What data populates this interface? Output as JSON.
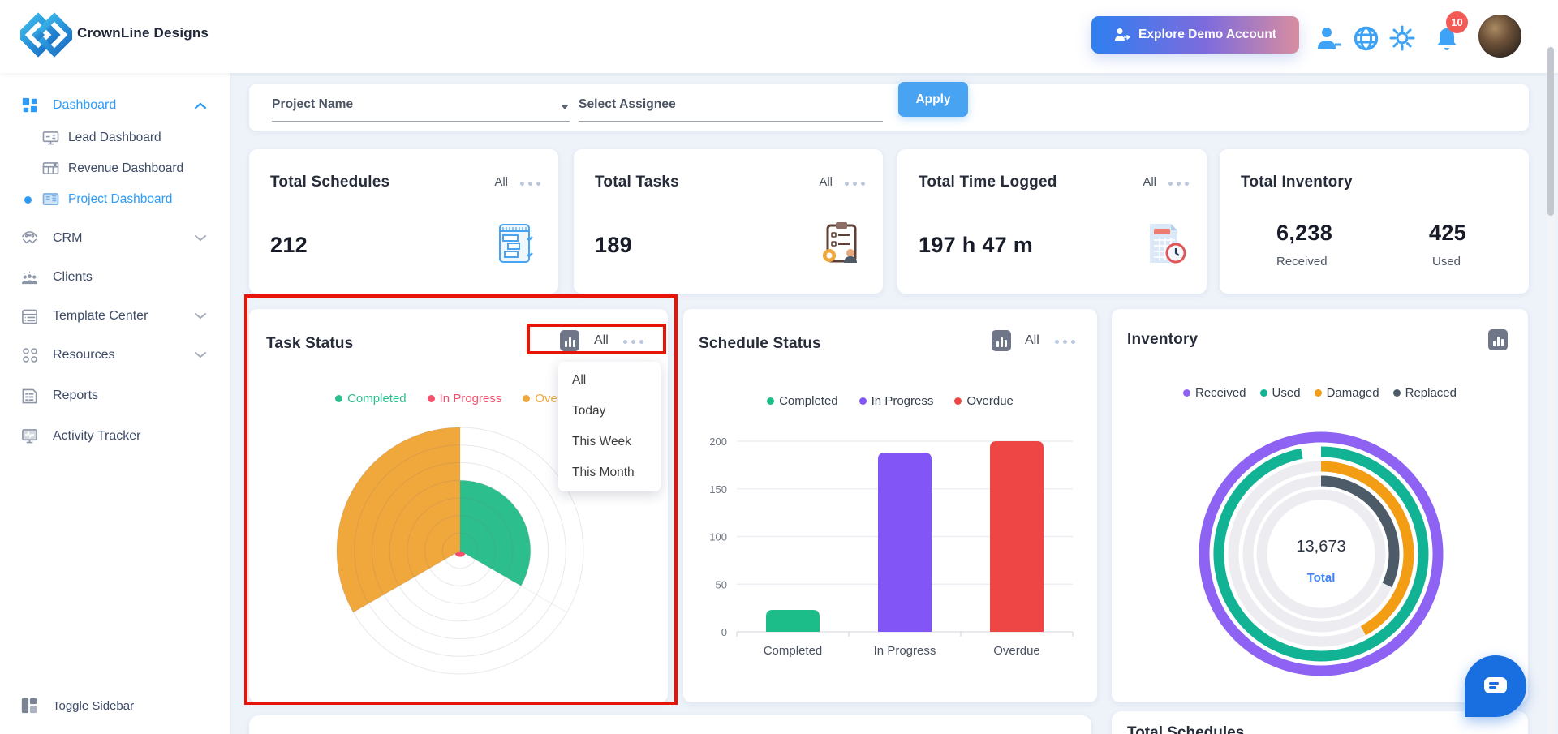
{
  "header": {
    "brand": "CrownLine Designs",
    "explore_button_label": "Explore Demo Account",
    "notification_badge": "10",
    "icons": [
      "brand-logo",
      "person-add-icon",
      "globe-icon",
      "settings-gear-icon",
      "notifications-bell-icon",
      "user-avatar"
    ]
  },
  "sidebar": {
    "items": [
      {
        "label": "Dashboard",
        "state": "active-expanded"
      },
      {
        "label": "Lead Dashboard",
        "state": "normal"
      },
      {
        "label": "Revenue Dashboard",
        "state": "normal"
      },
      {
        "label": "Project Dashboard",
        "state": "active"
      },
      {
        "label": "CRM",
        "state": "collapsed"
      },
      {
        "label": "Clients",
        "state": "normal"
      },
      {
        "label": "Template Center",
        "state": "collapsed"
      },
      {
        "label": "Resources",
        "state": "collapsed"
      },
      {
        "label": "Reports",
        "state": "normal"
      },
      {
        "label": "Activity Tracker",
        "state": "normal"
      }
    ],
    "toggle_label": "Toggle Sidebar"
  },
  "filters": {
    "project_name_label": "Project Name",
    "assignee_placeholder": "Select Assignee",
    "apply_button": "Apply"
  },
  "stat_cards": [
    {
      "title": "Total Schedules",
      "period": "All",
      "value": "212"
    },
    {
      "title": "Total Tasks",
      "period": "All",
      "value": "189"
    },
    {
      "title": "Total Time Logged",
      "period": "All",
      "value": "197 h 47 m"
    },
    {
      "title": "Total Inventory",
      "received_value": "6,238",
      "received_label": "Received",
      "used_value": "425",
      "used_label": "Used"
    }
  ],
  "task_dropdown": {
    "selected": "All",
    "options": [
      "All",
      "Today",
      "This Week",
      "This Month"
    ]
  },
  "bottom_cards": {
    "right_partial_title": "Total Schedules"
  },
  "chart_data": [
    {
      "type": "polar_area",
      "title": "Task Status",
      "period_selected": "All",
      "categories": [
        "Completed",
        "In Progress",
        "Overdue"
      ],
      "values_relative": [
        57,
        5,
        100
      ],
      "colors": [
        "#2dbe8d",
        "#f4516c",
        "#f0a73c"
      ],
      "grid_rings": 7,
      "legend_position": "top",
      "legend_text_colored": true
    },
    {
      "type": "bar",
      "title": "Schedule Status",
      "period_selected": "All",
      "categories": [
        "Completed",
        "In Progress",
        "Overdue"
      ],
      "values": [
        23,
        188,
        200
      ],
      "colors": [
        "#1dbd89",
        "#8155f6",
        "#ee4545"
      ],
      "ylim": [
        0,
        200
      ],
      "yticks": [
        0,
        50,
        100,
        150,
        200
      ],
      "grid": "horizontal",
      "legend_position": "top"
    },
    {
      "type": "concentric_donut",
      "title": "Inventory",
      "series": [
        {
          "name": "Received",
          "fraction": 1.0,
          "color": "#8e63f3"
        },
        {
          "name": "Used",
          "fraction": 0.97,
          "color": "#12b394"
        },
        {
          "name": "Damaged",
          "fraction": 0.42,
          "color": "#f29d13"
        },
        {
          "name": "Replaced",
          "fraction": 0.32,
          "color": "#4d5a68"
        }
      ],
      "center_value": "13,673",
      "center_label": "Total",
      "legend_position": "top"
    }
  ],
  "accent_colors": {
    "primary_blue": "#2e9cf7",
    "apply_blue": "#49a3f3",
    "badge_red": "#f25a55",
    "chat_blue": "#1a6fe0",
    "annotation_red": "#e81407"
  }
}
